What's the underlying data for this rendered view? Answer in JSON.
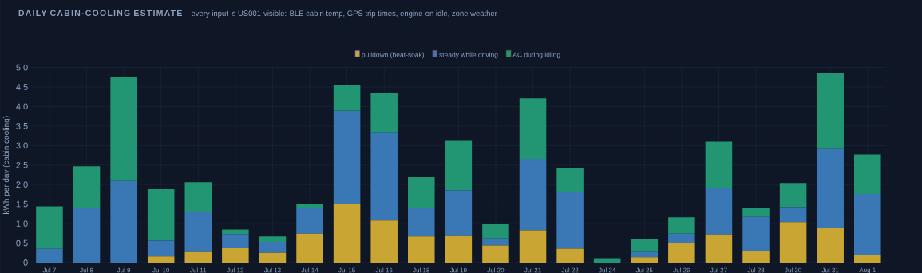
{
  "chart_data": {
    "type": "bar",
    "stacked": true,
    "title": "DAILY CABIN-COOLING ESTIMATE",
    "subtitle": "· every input is US001-visible: BLE cabin temp, GPS trip times, engine-on idle, zone weather",
    "ylabel": "kWh per day (cabin cooling)",
    "categories": [
      "Jul 7",
      "Jul 8",
      "Jul 9",
      "Jul 10",
      "Jul 11",
      "Jul 12",
      "Jul 13",
      "Jul 14",
      "Jul 15",
      "Jul 16",
      "Jul 18",
      "Jul 19",
      "Jul 20",
      "Jul 21",
      "Jul 22",
      "Jul 24",
      "Jul 25",
      "Jul 26",
      "Jul 27",
      "Jul 28",
      "Jul 30",
      "Jul 31",
      "Aug 1"
    ],
    "series": [
      {
        "name": "pulldown (heat-soak)",
        "color": "#c9a633",
        "values": [
          0,
          0,
          0,
          0.16,
          0.27,
          0.37,
          0.25,
          0.74,
          1.5,
          1.08,
          0.67,
          0.68,
          0.44,
          0.83,
          0.36,
          0,
          0.14,
          0.5,
          0.72,
          0.29,
          1.04,
          0.88,
          0.2
        ]
      },
      {
        "name": "steady while driving",
        "color": "#3a78b5",
        "values": [
          0.35,
          1.41,
          2.09,
          0.4,
          1.02,
          0.36,
          0.28,
          0.66,
          2.39,
          2.26,
          0.72,
          1.17,
          0.18,
          1.83,
          1.45,
          0,
          0.13,
          0.24,
          1.2,
          0.88,
          0.38,
          2.03,
          1.56
        ]
      },
      {
        "name": "AC during idling",
        "color": "#229673",
        "values": [
          1.09,
          1.06,
          2.66,
          1.32,
          0.77,
          0.12,
          0.14,
          0.11,
          0.65,
          1.01,
          0.8,
          1.27,
          0.37,
          1.55,
          0.61,
          0.11,
          0.34,
          0.42,
          1.18,
          0.23,
          0.62,
          1.95,
          1.01
        ]
      }
    ],
    "ylim": [
      0,
      5.0
    ],
    "yticks": [
      0,
      {
        "value": 0.5,
        "label": "0.5"
      },
      {
        "value": 1,
        "label": "1.0"
      },
      {
        "value": 1.5,
        "label": "1.5"
      },
      {
        "value": 2,
        "label": "2.0"
      },
      {
        "value": 2.5,
        "label": "2.5"
      },
      {
        "value": 3,
        "label": "3.0"
      },
      {
        "value": 3.5,
        "label": "3.5"
      },
      {
        "value": 4,
        "label": "4.0"
      },
      {
        "value": 4.5,
        "label": "4.5"
      },
      {
        "value": 5,
        "label": "5.0"
      }
    ],
    "grid": true,
    "legend": "top"
  }
}
